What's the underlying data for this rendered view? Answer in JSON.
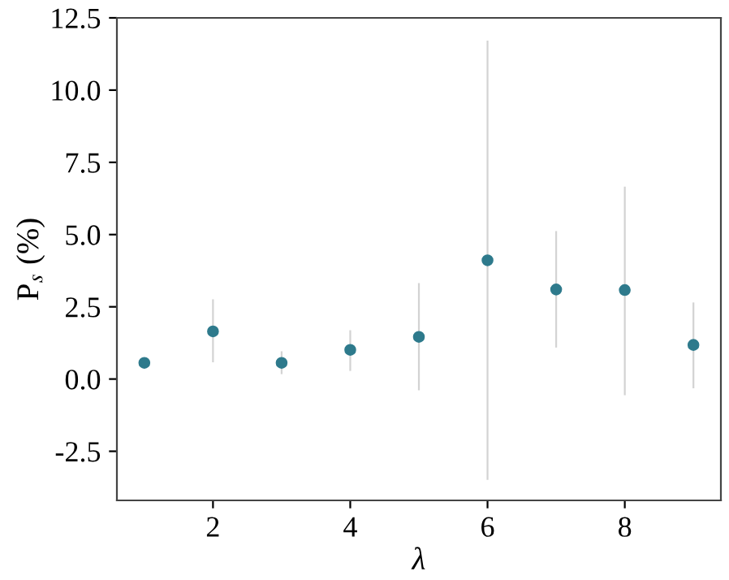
{
  "chart_data": {
    "type": "scatter",
    "xlabel": "λ",
    "ylabel": "P$_{s}$ (%)",
    "x": [
      1,
      2,
      3,
      4,
      5,
      6,
      7,
      8,
      9
    ],
    "series": [
      {
        "color": "#2e7a8c",
        "values": [
          0.56,
          1.65,
          0.56,
          1.01,
          1.46,
          4.11,
          3.1,
          3.08,
          1.18
        ],
        "errors": [
          null,
          [
            0.58,
            2.76
          ],
          [
            0.17,
            0.96
          ],
          [
            0.28,
            1.69
          ],
          [
            -0.39,
            3.32
          ],
          [
            -3.49,
            11.71
          ],
          [
            1.09,
            5.12
          ],
          [
            -0.56,
            6.66
          ],
          [
            -0.32,
            2.65
          ]
        ]
      }
    ],
    "xlim": [
      0.6,
      9.4
    ],
    "ylim": [
      -4.2,
      12.5
    ],
    "xticks": [
      2,
      4,
      6,
      8
    ],
    "yticks": [
      -2.5,
      {
        "value": 0,
        "label": "0.0"
      },
      2.5,
      {
        "value": 5,
        "label": "5.0"
      },
      7.5,
      {
        "value": 10,
        "label": "10.0"
      },
      12.5
    ],
    "marker": "circle",
    "grid": false,
    "legend": false
  }
}
